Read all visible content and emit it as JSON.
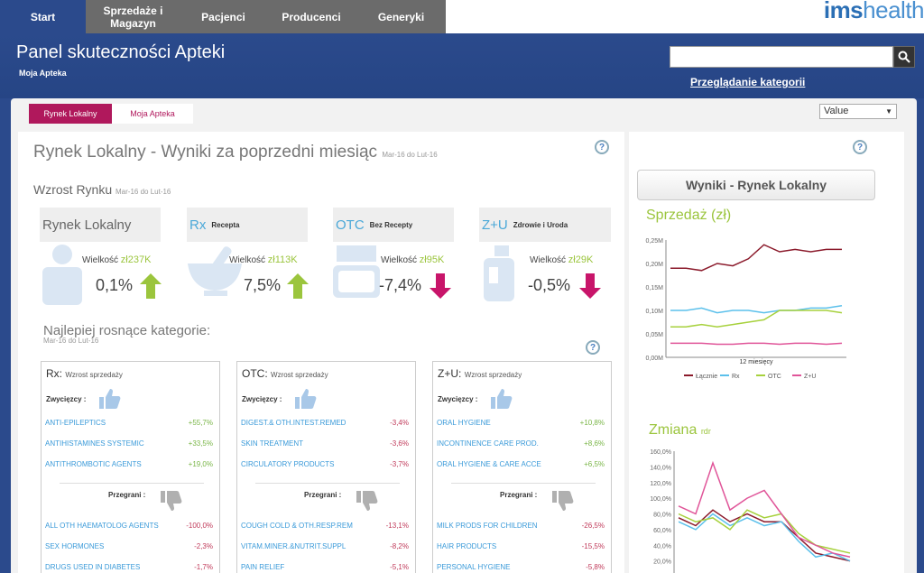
{
  "nav": {
    "tabs": [
      {
        "label": "Start",
        "active": true
      },
      {
        "label": "Sprzedaże i Magazyn"
      },
      {
        "label": "Pacjenci"
      },
      {
        "label": "Producenci"
      },
      {
        "label": "Generyki"
      }
    ],
    "logo": {
      "part1": "ims",
      "part2": "health"
    }
  },
  "header": {
    "title": "Panel skuteczności Apteki",
    "subtitle": "Moja Apteka",
    "search_placeholder": "",
    "browse_label": "Przeglądanie kategorii"
  },
  "subtabs": [
    {
      "label": "Rynek Lokalny",
      "active": true
    },
    {
      "label": "Moja Apteka"
    }
  ],
  "value_select": "Value",
  "main": {
    "title": "Rynek Lokalny - Wyniki za poprzedni miesiąc",
    "period": "Mar-16 do Lut-16",
    "growth_title": "Wzrost Rynku",
    "growth_period": "Mar-16 do Lut-16",
    "kpis": [
      {
        "name": "Rynek Lokalny",
        "desc": "",
        "vol_label": "Wielkość",
        "vol": "zł237K",
        "pct": "0,1%",
        "dir": "up"
      },
      {
        "name": "Rx",
        "desc": "Recepta",
        "vol_label": "Wielkość",
        "vol": "zł113K",
        "pct": "7,5%",
        "dir": "up"
      },
      {
        "name": "OTC",
        "desc": "Bez Recepty",
        "vol_label": "Wielkość",
        "vol": "zł95K",
        "pct": "-7,4%",
        "dir": "down"
      },
      {
        "name": "Z+U",
        "desc": "Zdrowie i Uroda",
        "vol_label": "Wielkość",
        "vol": "zł29K",
        "pct": "-0,5%",
        "dir": "down"
      }
    ],
    "top_title": "Najlepiej rosnące kategorie:",
    "top_period": "Mar-16 do Lut-16",
    "boxes": [
      {
        "title": "Rx:",
        "sub": "Wzrost sprzedaży",
        "winners_label": "Zwycięzcy :",
        "losers_label": "Przegrani :",
        "winners": [
          {
            "name": "ANTI-EPILEPTICS",
            "val": "+55,7%"
          },
          {
            "name": "ANTIHISTAMINES SYSTEMIC",
            "val": "+33,5%"
          },
          {
            "name": "ANTITHROMBOTIC AGENTS",
            "val": "+19,0%"
          }
        ],
        "losers": [
          {
            "name": "ALL OTH HAEMATOLOG AGENTS",
            "val": "-100,0%"
          },
          {
            "name": "SEX HORMONES",
            "val": "-2,3%"
          },
          {
            "name": "DRUGS USED IN DIABETES",
            "val": "-1,7%"
          }
        ]
      },
      {
        "title": "OTC:",
        "sub": "Wzrost sprzedaży",
        "winners_label": "Zwycięzcy :",
        "losers_label": "Przegrani :",
        "winners": [
          {
            "name": "DIGEST.& OTH.INTEST.REMED",
            "val": "-3,4%"
          },
          {
            "name": "SKIN TREATMENT",
            "val": "-3,6%"
          },
          {
            "name": "CIRCULATORY PRODUCTS",
            "val": "-3,7%"
          }
        ],
        "losers": [
          {
            "name": "COUGH COLD & OTH.RESP.REM",
            "val": "-13,1%"
          },
          {
            "name": "VITAM.MINER.&NUTRIT.SUPPL",
            "val": "-8,2%"
          },
          {
            "name": "PAIN RELIEF",
            "val": "-5,1%"
          }
        ]
      },
      {
        "title": "Z+U:",
        "sub": "Wzrost sprzedaży",
        "winners_label": "Zwycięzcy :",
        "losers_label": "Przegrani :",
        "winners": [
          {
            "name": "ORAL HYGIENE",
            "val": "+10,8%"
          },
          {
            "name": "INCONTINENCE CARE PROD.",
            "val": "+8,6%"
          },
          {
            "name": "ORAL HYGIENE & CARE ACCE",
            "val": "+6,5%"
          }
        ],
        "losers": [
          {
            "name": "MILK PRODS FOR CHILDREN",
            "val": "-26,5%"
          },
          {
            "name": "HAIR PRODUCTS",
            "val": "-15,5%"
          },
          {
            "name": "PERSONAL HYGIENE",
            "val": "-5,8%"
          }
        ]
      }
    ]
  },
  "right": {
    "title": "Wyniki - Rynek Lokalny",
    "sales_title": "Sprzedaż (zł)",
    "change_title": "Zmiana",
    "change_sub": "rdr",
    "help": "?"
  },
  "chart_data": [
    {
      "type": "line",
      "title": "Sprzedaż (zł)",
      "xlabel": "12 miesięcy",
      "ylim": [
        0,
        0.25
      ],
      "yticks": [
        "0,00M",
        "0,05M",
        "0,10M",
        "0,15M",
        "0,20M",
        "0,25M"
      ],
      "series": [
        {
          "name": "Łącznie",
          "color": "#8b1a2b",
          "values": [
            0.19,
            0.19,
            0.185,
            0.2,
            0.195,
            0.21,
            0.24,
            0.225,
            0.23,
            0.225,
            0.23,
            0.23
          ]
        },
        {
          "name": "Rx",
          "color": "#5bc0eb",
          "values": [
            0.1,
            0.1,
            0.105,
            0.095,
            0.1,
            0.1,
            0.095,
            0.1,
            0.1,
            0.105,
            0.105,
            0.11
          ]
        },
        {
          "name": "OTC",
          "color": "#a7d13d",
          "values": [
            0.065,
            0.065,
            0.07,
            0.065,
            0.07,
            0.075,
            0.08,
            0.1,
            0.1,
            0.1,
            0.1,
            0.095
          ]
        },
        {
          "name": "Z+U",
          "color": "#e05599",
          "values": [
            0.03,
            0.03,
            0.03,
            0.028,
            0.028,
            0.03,
            0.03,
            0.028,
            0.03,
            0.03,
            0.028,
            0.03
          ]
        }
      ]
    },
    {
      "type": "line",
      "title": "Zmiana",
      "ylim": [
        0,
        160
      ],
      "yticks": [
        "20,0%",
        "40,0%",
        "60,0%",
        "80,0%",
        "100,0%",
        "120,0%",
        "140,0%",
        "160,0%"
      ],
      "series": [
        {
          "name": "Łącznie",
          "color": "#8b1a2b",
          "values": [
            75,
            65,
            85,
            70,
            80,
            70,
            70,
            50,
            30,
            25,
            20
          ]
        },
        {
          "name": "Rx",
          "color": "#5bc0eb",
          "values": [
            70,
            60,
            80,
            65,
            75,
            65,
            70,
            45,
            25,
            30,
            20
          ]
        },
        {
          "name": "OTC",
          "color": "#a7d13d",
          "values": [
            80,
            70,
            75,
            60,
            85,
            75,
            80,
            55,
            40,
            35,
            30
          ]
        },
        {
          "name": "Z+U",
          "color": "#e05599",
          "values": [
            90,
            80,
            145,
            85,
            100,
            110,
            80,
            50,
            40,
            30,
            25
          ]
        }
      ]
    }
  ]
}
